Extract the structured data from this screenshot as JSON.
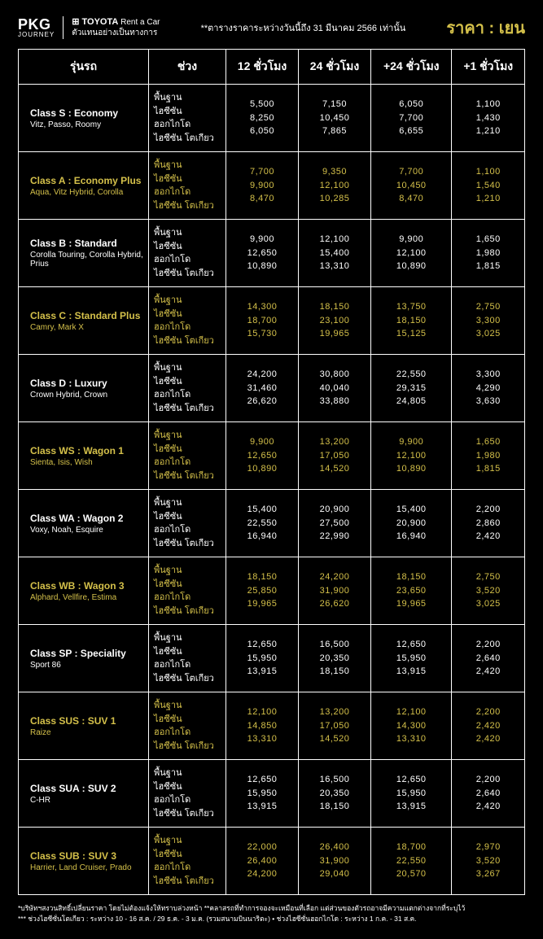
{
  "header": {
    "pkg": "PKG",
    "pkg_sub": "JOURNEY",
    "toyota_brand": "⊞ TOYOTA",
    "toyota_line1": "Rent a Car",
    "toyota_line2": "ตัวแทนอย่างเป็นทางการ",
    "note": "**ตารางราคาระหว่างวันนี้ถึง 31 มีนาคม 2566 เท่านั้น",
    "price_label": "ราคา : เยน"
  },
  "columns": [
    "รุ่นรถ",
    "ช่วง",
    "12 ชั่วโมง",
    "24 ชั่วโมง",
    "+24 ชั่วโมง",
    "+1 ชั่วโมง"
  ],
  "periods": [
    "พื้นฐาน",
    "ไฮซีซัน ฮอกไกโด",
    "ไฮซีซัน โตเกียว"
  ],
  "colors": {
    "gold": "#d4c04a",
    "white": "#ffffff",
    "bg": "#000000"
  },
  "rows": [
    {
      "color": "white",
      "name": "Class S : Economy",
      "models": "Vitz, Passo, Roomy",
      "h12": [
        "5,500",
        "8,250",
        "6,050"
      ],
      "h24": [
        "7,150",
        "10,450",
        "7,865"
      ],
      "p24": [
        "6,050",
        "7,700",
        "6,655"
      ],
      "p1": [
        "1,100",
        "1,430",
        "1,210"
      ]
    },
    {
      "color": "gold",
      "name": "Class A : Economy Plus",
      "models": "Aqua, Vitz Hybrid, Corolla",
      "h12": [
        "7,700",
        "9,900",
        "8,470"
      ],
      "h24": [
        "9,350",
        "12,100",
        "10,285"
      ],
      "p24": [
        "7,700",
        "10,450",
        "8,470"
      ],
      "p1": [
        "1,100",
        "1,540",
        "1,210"
      ]
    },
    {
      "color": "white",
      "name": "Class B : Standard",
      "models": "Corolla Touring, Corolla Hybrid, Prius",
      "h12": [
        "9,900",
        "12,650",
        "10,890"
      ],
      "h24": [
        "12,100",
        "15,400",
        "13,310"
      ],
      "p24": [
        "9,900",
        "12,100",
        "10,890"
      ],
      "p1": [
        "1,650",
        "1,980",
        "1,815"
      ]
    },
    {
      "color": "gold",
      "name": "Class C : Standard Plus",
      "models": "Camry, Mark X",
      "h12": [
        "14,300",
        "18,700",
        "15,730"
      ],
      "h24": [
        "18,150",
        "23,100",
        "19,965"
      ],
      "p24": [
        "13,750",
        "18,150",
        "15,125"
      ],
      "p1": [
        "2,750",
        "3,300",
        "3,025"
      ]
    },
    {
      "color": "white",
      "name": "Class D : Luxury",
      "models": "Crown Hybrid, Crown",
      "h12": [
        "24,200",
        "31,460",
        "26,620"
      ],
      "h24": [
        "30,800",
        "40,040",
        "33,880"
      ],
      "p24": [
        "22,550",
        "29,315",
        "24,805"
      ],
      "p1": [
        "3,300",
        "4,290",
        "3,630"
      ]
    },
    {
      "color": "gold",
      "name": "Class WS : Wagon 1",
      "models": "Sienta, Isis, Wish",
      "h12": [
        "9,900",
        "12,650",
        "10,890"
      ],
      "h24": [
        "13,200",
        "17,050",
        "14,520"
      ],
      "p24": [
        "9,900",
        "12,100",
        "10,890"
      ],
      "p1": [
        "1,650",
        "1,980",
        "1,815"
      ]
    },
    {
      "color": "white",
      "name": "Class WA : Wagon 2",
      "models": "Voxy, Noah, Esquire",
      "h12": [
        "15,400",
        "22,550",
        "16,940"
      ],
      "h24": [
        "20,900",
        "27,500",
        "22,990"
      ],
      "p24": [
        "15,400",
        "20,900",
        "16,940"
      ],
      "p1": [
        "2,200",
        "2,860",
        "2,420"
      ]
    },
    {
      "color": "gold",
      "name": "Class WB : Wagon 3",
      "models": "Alphard, Vellfire, Estima",
      "h12": [
        "18,150",
        "25,850",
        "19,965"
      ],
      "h24": [
        "24,200",
        "31,900",
        "26,620"
      ],
      "p24": [
        "18,150",
        "23,650",
        "19,965"
      ],
      "p1": [
        "2,750",
        "3,520",
        "3,025"
      ]
    },
    {
      "color": "white",
      "name": "Class SP : Speciality",
      "models": "Sport 86",
      "h12": [
        "12,650",
        "15,950",
        "13,915"
      ],
      "h24": [
        "16,500",
        "20,350",
        "18,150"
      ],
      "p24": [
        "12,650",
        "15,950",
        "13,915"
      ],
      "p1": [
        "2,200",
        "2,640",
        "2,420"
      ]
    },
    {
      "color": "gold",
      "name": "Class SUS : SUV 1",
      "models": "Raize",
      "h12": [
        "12,100",
        "14,850",
        "13,310"
      ],
      "h24": [
        "13,200",
        "17,050",
        "14,520"
      ],
      "p24": [
        "12,100",
        "14,300",
        "13,310"
      ],
      "p1": [
        "2,200",
        "2,420",
        "2,420"
      ]
    },
    {
      "color": "white",
      "name": "Class SUA : SUV 2",
      "models": "C-HR",
      "h12": [
        "12,650",
        "15,950",
        "13,915"
      ],
      "h24": [
        "16,500",
        "20,350",
        "18,150"
      ],
      "p24": [
        "12,650",
        "15,950",
        "13,915"
      ],
      "p1": [
        "2,200",
        "2,640",
        "2,420"
      ]
    },
    {
      "color": "gold",
      "name": "Class SUB : SUV 3",
      "models": "Harrier, Land Cruiser, Prado",
      "h12": [
        "22,000",
        "26,400",
        "24,200"
      ],
      "h24": [
        "26,400",
        "31,900",
        "29,040"
      ],
      "p24": [
        "18,700",
        "22,550",
        "20,570"
      ],
      "p1": [
        "2,970",
        "3,520",
        "3,267"
      ]
    }
  ],
  "footer": {
    "line1": "*บริษัทฯสงวนสิทธิ์เปลี่ยนราคา โดยไม่ต้องแจ้งให้ทราบล่วงหน้า **คลาสรถที่ทำการจองจะเหมือนที่เลือก แต่ส่วนของตัวรถอาจมีความแตกต่างจากที่ระบุไว้",
    "line2": "*** ช่วงไฮซีซั่นโตเกียว : ระหว่าง 10 - 16 ส.ค. / 29 ธ.ค. - 3 ม.ค. (รวมสนามบินนาริตะ) • ช่วงไฮซีซั่นฮอกไกโด : ระหว่าง 1 ก.ค. - 31 ส.ค."
  }
}
